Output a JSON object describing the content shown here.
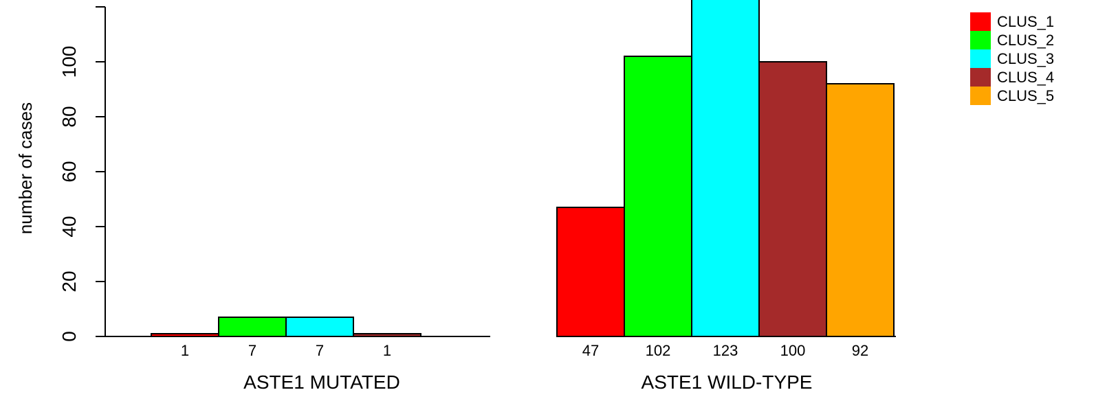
{
  "chart_data": {
    "type": "bar",
    "ylabel": "number of cases",
    "ylim": [
      0,
      120
    ],
    "yticks": [
      0,
      20,
      40,
      60,
      80,
      100
    ],
    "grid": false,
    "legend_placement": "top-right",
    "series": [
      {
        "name": "CLUS_1",
        "color": "#ff0000"
      },
      {
        "name": "CLUS_2",
        "color": "#00ff00"
      },
      {
        "name": "CLUS_3",
        "color": "#00ffff"
      },
      {
        "name": "CLUS_4",
        "color": "#a52a2a"
      },
      {
        "name": "CLUS_5",
        "color": "#ffa500"
      }
    ],
    "groups": [
      {
        "label": "ASTE1 MUTATED",
        "values": [
          1,
          7,
          7,
          1,
          0
        ],
        "value_labels": [
          "1",
          "7",
          "7",
          "1",
          ""
        ]
      },
      {
        "label": "ASTE1 WILD-TYPE",
        "values": [
          47,
          102,
          123,
          100,
          92
        ],
        "value_labels": [
          "47",
          "102",
          "123",
          "100",
          "92"
        ]
      }
    ]
  }
}
